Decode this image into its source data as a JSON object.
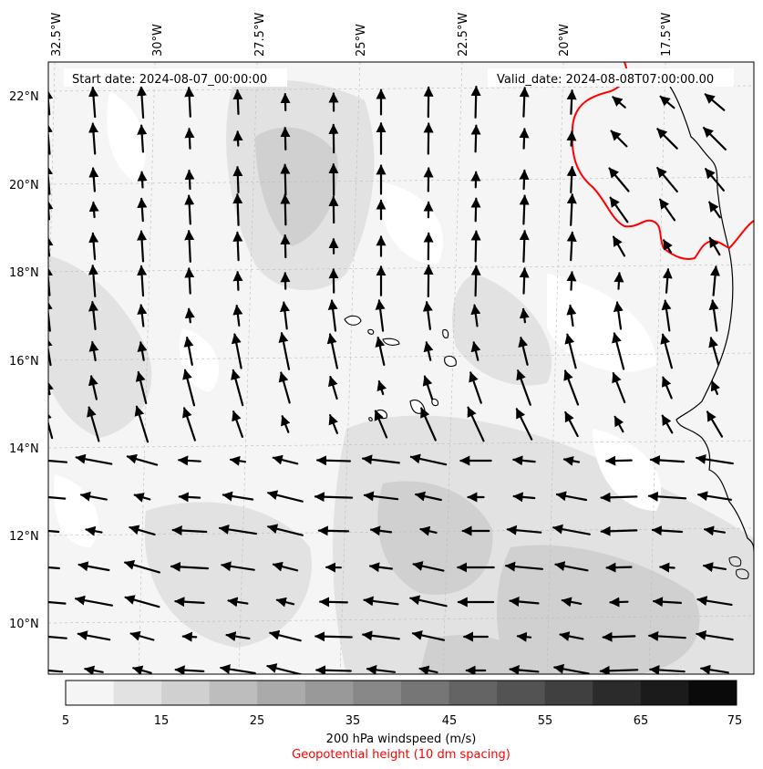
{
  "header": {
    "start_date": "Start date: 2024-08-07_00:00:00",
    "valid_date": "Valid_date: 2024-08-08T07:00:00.00"
  },
  "map": {
    "lon_labels": [
      "32.5°W",
      "30°W",
      "27.5°W",
      "25°W",
      "22.5°W",
      "20°W",
      "17.5°W"
    ],
    "lat_labels": [
      "22°N",
      "20°N",
      "18°N",
      "16°N",
      "14°N",
      "12°N",
      "10°N"
    ],
    "colors": {
      "land_outline": "#000000",
      "geopotential_contour": "#ff0000",
      "arrow": "#000000",
      "gridline": "#bbbbbb"
    }
  },
  "colorbar": {
    "tick_labels": [
      "5",
      "15",
      "25",
      "35",
      "45",
      "55",
      "65",
      "75"
    ],
    "title": "200 hPa windspeed (m/s)",
    "subtitle": "Geopotential height (10 dm spacing)",
    "levels": [
      5,
      10,
      15,
      20,
      25,
      30,
      35,
      40,
      45,
      50,
      55,
      60,
      65,
      70,
      75
    ],
    "colors": [
      "#f5f5f5",
      "#e2e2e2",
      "#d0d0d0",
      "#bdbdbd",
      "#aaaaaa",
      "#999999",
      "#888888",
      "#767676",
      "#646464",
      "#535353",
      "#404040",
      "#2b2b2b",
      "#1b1b1b",
      "#0a0a0a"
    ]
  }
}
